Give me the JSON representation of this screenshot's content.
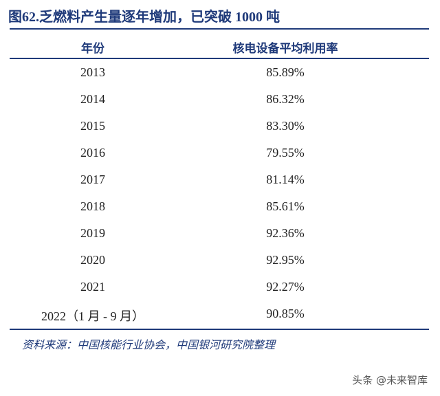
{
  "header": {
    "title": "图62.乏燃料产生量逐年增加，已突破 1000 吨"
  },
  "table": {
    "columns": [
      "年份",
      "核电设备平均利用率"
    ],
    "rows": [
      [
        "2013",
        "85.89%"
      ],
      [
        "2014",
        "86.32%"
      ],
      [
        "2015",
        "83.30%"
      ],
      [
        "2016",
        "79.55%"
      ],
      [
        "2017",
        "81.14%"
      ],
      [
        "2018",
        "85.61%"
      ],
      [
        "2019",
        "92.36%"
      ],
      [
        "2020",
        "92.95%"
      ],
      [
        "2021",
        "92.27%"
      ],
      [
        "2022（1 月 - 9 月）",
        "90.85%"
      ]
    ]
  },
  "source": "资料来源：中国核能行业协会，中国银河研究院整理",
  "watermark": "头条 @未来智库"
}
